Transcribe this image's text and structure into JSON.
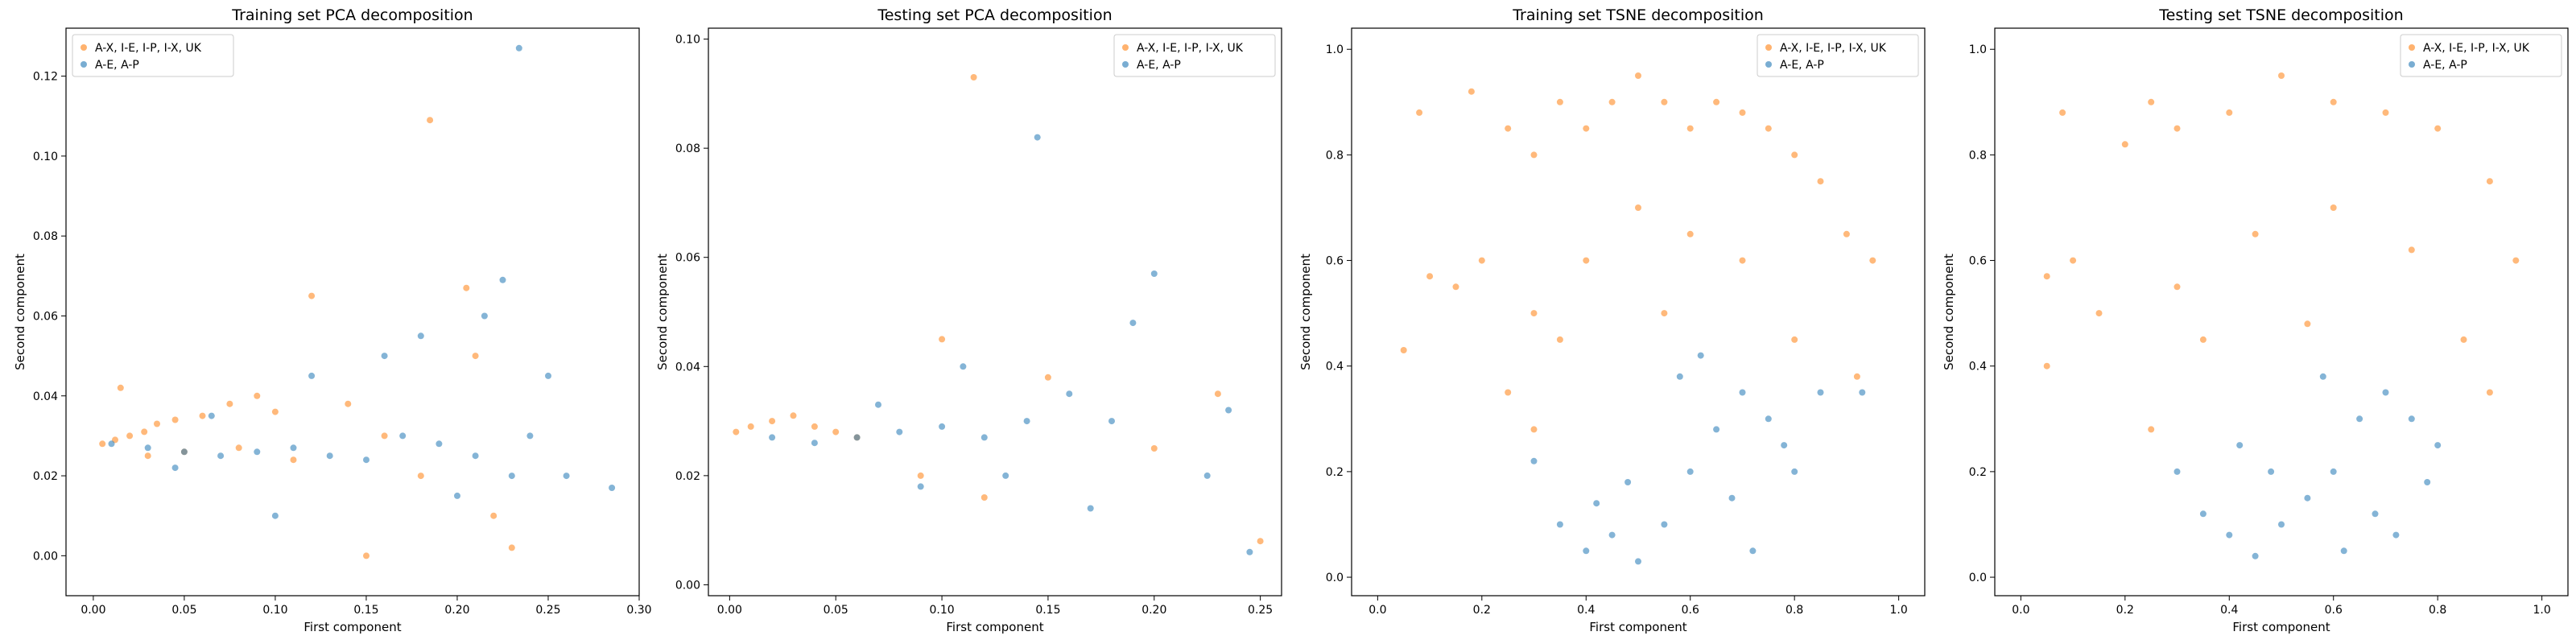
{
  "colors": {
    "orange": "#ff7f0e",
    "blue": "#1f77b4"
  },
  "chart_data": [
    {
      "type": "scatter",
      "title": "Training set PCA decomposition",
      "xlabel": "First component",
      "ylabel": "Second component",
      "xlim": [
        -0.015,
        0.3
      ],
      "ylim": [
        -0.01,
        0.132
      ],
      "xticks": [
        0.0,
        0.05,
        0.1,
        0.15,
        0.2,
        0.25,
        0.3
      ],
      "xtick_labels": [
        "0.00",
        "0.05",
        "0.10",
        "0.15",
        "0.20",
        "0.25",
        "0.30"
      ],
      "yticks": [
        0.0,
        0.02,
        0.04,
        0.06,
        0.08,
        0.1,
        0.12
      ],
      "ytick_labels": [
        "0.00",
        "0.02",
        "0.04",
        "0.06",
        "0.08",
        "0.10",
        "0.12"
      ],
      "grid": false,
      "legend_position": "top-left",
      "series": [
        {
          "name": "A-X, I-E, I-P, I-X, UK",
          "color": "#ff7f0e",
          "points": [
            [
              0.005,
              0.028
            ],
            [
              0.012,
              0.029
            ],
            [
              0.02,
              0.03
            ],
            [
              0.028,
              0.031
            ],
            [
              0.035,
              0.033
            ],
            [
              0.045,
              0.034
            ],
            [
              0.06,
              0.035
            ],
            [
              0.075,
              0.038
            ],
            [
              0.09,
              0.04
            ],
            [
              0.1,
              0.036
            ],
            [
              0.12,
              0.065
            ],
            [
              0.16,
              0.03
            ],
            [
              0.185,
              0.109
            ],
            [
              0.205,
              0.067
            ],
            [
              0.18,
              0.02
            ],
            [
              0.22,
              0.01
            ],
            [
              0.23,
              0.002
            ],
            [
              0.15,
              0.0
            ],
            [
              0.03,
              0.025
            ],
            [
              0.05,
              0.026
            ],
            [
              0.08,
              0.027
            ],
            [
              0.11,
              0.024
            ],
            [
              0.14,
              0.038
            ],
            [
              0.21,
              0.05
            ],
            [
              0.015,
              0.042
            ]
          ]
        },
        {
          "name": "A-E, A-P",
          "color": "#1f77b4",
          "points": [
            [
              0.01,
              0.028
            ],
            [
              0.03,
              0.027
            ],
            [
              0.05,
              0.026
            ],
            [
              0.07,
              0.025
            ],
            [
              0.09,
              0.026
            ],
            [
              0.11,
              0.027
            ],
            [
              0.13,
              0.025
            ],
            [
              0.15,
              0.024
            ],
            [
              0.17,
              0.03
            ],
            [
              0.19,
              0.028
            ],
            [
              0.21,
              0.025
            ],
            [
              0.225,
              0.069
            ],
            [
              0.234,
              0.127
            ],
            [
              0.16,
              0.05
            ],
            [
              0.2,
              0.015
            ],
            [
              0.23,
              0.02
            ],
            [
              0.26,
              0.02
            ],
            [
              0.285,
              0.017
            ],
            [
              0.24,
              0.03
            ],
            [
              0.12,
              0.045
            ],
            [
              0.1,
              0.01
            ],
            [
              0.18,
              0.055
            ],
            [
              0.065,
              0.035
            ],
            [
              0.045,
              0.022
            ],
            [
              0.215,
              0.06
            ],
            [
              0.25,
              0.045
            ]
          ]
        }
      ]
    },
    {
      "type": "scatter",
      "title": "Testing set PCA decomposition",
      "xlabel": "First component",
      "ylabel": "Second component",
      "xlim": [
        -0.01,
        0.26
      ],
      "ylim": [
        -0.002,
        0.102
      ],
      "xticks": [
        0.0,
        0.05,
        0.1,
        0.15,
        0.2,
        0.25
      ],
      "xtick_labels": [
        "0.00",
        "0.05",
        "0.10",
        "0.15",
        "0.20",
        "0.25"
      ],
      "yticks": [
        0.0,
        0.02,
        0.04,
        0.06,
        0.08,
        0.1
      ],
      "ytick_labels": [
        "0.00",
        "0.02",
        "0.04",
        "0.06",
        "0.08",
        "0.10"
      ],
      "grid": false,
      "legend_position": "top-right",
      "series": [
        {
          "name": "A-X, I-E, I-P, I-X, UK",
          "color": "#ff7f0e",
          "points": [
            [
              0.003,
              0.028
            ],
            [
              0.01,
              0.029
            ],
            [
              0.02,
              0.03
            ],
            [
              0.03,
              0.031
            ],
            [
              0.04,
              0.029
            ],
            [
              0.05,
              0.028
            ],
            [
              0.06,
              0.027
            ],
            [
              0.115,
              0.093
            ],
            [
              0.1,
              0.045
            ],
            [
              0.15,
              0.038
            ],
            [
              0.2,
              0.025
            ],
            [
              0.23,
              0.035
            ],
            [
              0.25,
              0.008
            ],
            [
              0.09,
              0.02
            ],
            [
              0.12,
              0.016
            ]
          ]
        },
        {
          "name": "A-E, A-P",
          "color": "#1f77b4",
          "points": [
            [
              0.02,
              0.027
            ],
            [
              0.04,
              0.026
            ],
            [
              0.06,
              0.027
            ],
            [
              0.08,
              0.028
            ],
            [
              0.1,
              0.029
            ],
            [
              0.12,
              0.027
            ],
            [
              0.14,
              0.03
            ],
            [
              0.16,
              0.035
            ],
            [
              0.18,
              0.03
            ],
            [
              0.2,
              0.057
            ],
            [
              0.145,
              0.082
            ],
            [
              0.235,
              0.032
            ],
            [
              0.245,
              0.006
            ],
            [
              0.19,
              0.048
            ],
            [
              0.11,
              0.04
            ],
            [
              0.13,
              0.02
            ],
            [
              0.17,
              0.014
            ],
            [
              0.07,
              0.033
            ],
            [
              0.225,
              0.02
            ],
            [
              0.09,
              0.018
            ]
          ]
        }
      ]
    },
    {
      "type": "scatter",
      "title": "Training set TSNE decomposition",
      "xlabel": "First component",
      "ylabel": "Second component",
      "xlim": [
        -0.05,
        1.05
      ],
      "ylim": [
        -0.035,
        1.04
      ],
      "xticks": [
        0.0,
        0.2,
        0.4,
        0.6,
        0.8,
        1.0
      ],
      "xtick_labels": [
        "0.0",
        "0.2",
        "0.4",
        "0.6",
        "0.8",
        "1.0"
      ],
      "yticks": [
        0.0,
        0.2,
        0.4,
        0.6,
        0.8,
        1.0
      ],
      "ytick_labels": [
        "0.0",
        "0.2",
        "0.4",
        "0.6",
        "0.8",
        "1.0"
      ],
      "grid": false,
      "legend_position": "top-right",
      "series": [
        {
          "name": "A-X, I-E, I-P, I-X, UK",
          "color": "#ff7f0e",
          "points": [
            [
              0.1,
              0.57
            ],
            [
              0.15,
              0.55
            ],
            [
              0.2,
              0.6
            ],
            [
              0.25,
              0.85
            ],
            [
              0.3,
              0.8
            ],
            [
              0.35,
              0.9
            ],
            [
              0.4,
              0.85
            ],
            [
              0.45,
              0.9
            ],
            [
              0.5,
              0.95
            ],
            [
              0.55,
              0.9
            ],
            [
              0.6,
              0.85
            ],
            [
              0.65,
              0.9
            ],
            [
              0.7,
              0.88
            ],
            [
              0.75,
              0.85
            ],
            [
              0.8,
              0.8
            ],
            [
              0.85,
              0.75
            ],
            [
              0.9,
              0.65
            ],
            [
              0.95,
              0.6
            ],
            [
              0.3,
              0.5
            ],
            [
              0.4,
              0.6
            ],
            [
              0.5,
              0.7
            ],
            [
              0.6,
              0.65
            ],
            [
              0.7,
              0.6
            ],
            [
              0.25,
              0.35
            ],
            [
              0.3,
              0.28
            ],
            [
              0.05,
              0.43
            ],
            [
              0.08,
              0.88
            ],
            [
              0.18,
              0.92
            ],
            [
              0.35,
              0.45
            ],
            [
              0.55,
              0.5
            ],
            [
              0.8,
              0.45
            ],
            [
              0.92,
              0.38
            ]
          ]
        },
        {
          "name": "A-E, A-P",
          "color": "#1f77b4",
          "points": [
            [
              0.35,
              0.1
            ],
            [
              0.4,
              0.05
            ],
            [
              0.45,
              0.08
            ],
            [
              0.5,
              0.03
            ],
            [
              0.55,
              0.1
            ],
            [
              0.6,
              0.2
            ],
            [
              0.65,
              0.28
            ],
            [
              0.7,
              0.35
            ],
            [
              0.75,
              0.3
            ],
            [
              0.8,
              0.2
            ],
            [
              0.58,
              0.38
            ],
            [
              0.68,
              0.15
            ],
            [
              0.85,
              0.35
            ],
            [
              0.93,
              0.35
            ],
            [
              0.3,
              0.22
            ],
            [
              0.48,
              0.18
            ],
            [
              0.72,
              0.05
            ],
            [
              0.62,
              0.42
            ],
            [
              0.78,
              0.25
            ],
            [
              0.42,
              0.14
            ]
          ]
        }
      ]
    },
    {
      "type": "scatter",
      "title": "Testing set TSNE decomposition",
      "xlabel": "First component",
      "ylabel": "Second component",
      "xlim": [
        -0.05,
        1.05
      ],
      "ylim": [
        -0.035,
        1.04
      ],
      "xticks": [
        0.0,
        0.2,
        0.4,
        0.6,
        0.8,
        1.0
      ],
      "xtick_labels": [
        "0.0",
        "0.2",
        "0.4",
        "0.6",
        "0.8",
        "1.0"
      ],
      "yticks": [
        0.0,
        0.2,
        0.4,
        0.6,
        0.8,
        1.0
      ],
      "ytick_labels": [
        "0.0",
        "0.2",
        "0.4",
        "0.6",
        "0.8",
        "1.0"
      ],
      "grid": false,
      "legend_position": "top-right",
      "series": [
        {
          "name": "A-X, I-E, I-P, I-X, UK",
          "color": "#ff7f0e",
          "points": [
            [
              0.05,
              0.57
            ],
            [
              0.1,
              0.6
            ],
            [
              0.2,
              0.82
            ],
            [
              0.25,
              0.9
            ],
            [
              0.3,
              0.85
            ],
            [
              0.4,
              0.88
            ],
            [
              0.5,
              0.95
            ],
            [
              0.6,
              0.9
            ],
            [
              0.7,
              0.88
            ],
            [
              0.8,
              0.85
            ],
            [
              0.9,
              0.75
            ],
            [
              0.95,
              0.6
            ],
            [
              0.3,
              0.55
            ],
            [
              0.45,
              0.65
            ],
            [
              0.6,
              0.7
            ],
            [
              0.75,
              0.62
            ],
            [
              0.25,
              0.28
            ],
            [
              0.05,
              0.4
            ],
            [
              0.08,
              0.88
            ],
            [
              0.35,
              0.45
            ],
            [
              0.55,
              0.48
            ],
            [
              0.85,
              0.45
            ],
            [
              0.9,
              0.35
            ],
            [
              0.15,
              0.5
            ]
          ]
        },
        {
          "name": "A-E, A-P",
          "color": "#1f77b4",
          "points": [
            [
              0.35,
              0.12
            ],
            [
              0.4,
              0.08
            ],
            [
              0.45,
              0.04
            ],
            [
              0.5,
              0.1
            ],
            [
              0.55,
              0.15
            ],
            [
              0.6,
              0.2
            ],
            [
              0.65,
              0.3
            ],
            [
              0.7,
              0.35
            ],
            [
              0.75,
              0.3
            ],
            [
              0.8,
              0.25
            ],
            [
              0.58,
              0.38
            ],
            [
              0.68,
              0.12
            ],
            [
              0.3,
              0.2
            ],
            [
              0.48,
              0.2
            ],
            [
              0.72,
              0.08
            ],
            [
              0.78,
              0.18
            ],
            [
              0.62,
              0.05
            ],
            [
              0.42,
              0.25
            ]
          ]
        }
      ]
    }
  ]
}
